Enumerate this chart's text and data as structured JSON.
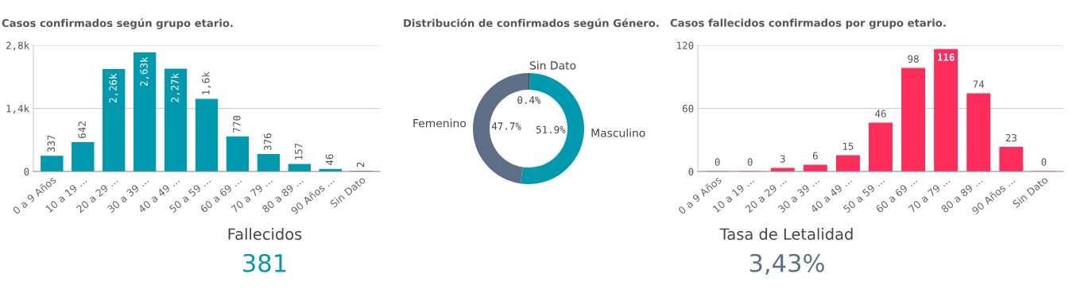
{
  "chart_data": [
    {
      "type": "bar",
      "title": "Casos confirmados según grupo etario.",
      "categories": [
        "0 a 9 Años",
        "10 a 19 ...",
        "20 a 29 ...",
        "30 a 39 ...",
        "40 a 49 ...",
        "50 a 59 ...",
        "60 a 69 ...",
        "70 a 79 ...",
        "80 a 89 ...",
        "90 Años ...",
        "Sin Dato"
      ],
      "values": [
        337,
        642,
        2260,
        2630,
        2270,
        1600,
        770,
        376,
        157,
        46,
        2
      ],
      "value_labels": [
        "337",
        "642",
        "2,26k",
        "2,63k",
        "2,27k",
        "1,6k",
        "770",
        "376",
        "157",
        "46",
        "2"
      ],
      "color": "#0099ad",
      "ylim": [
        0,
        2800
      ],
      "yticks": [
        0,
        {
          "value": 1400,
          "label": "1,4k"
        },
        {
          "value": 2800,
          "label": "2,8k"
        }
      ],
      "grid": "y"
    },
    {
      "type": "donut",
      "title": "Distribución de confirmados según Género.",
      "categories": [
        "Sin Dato",
        "Masculino",
        "Femenino"
      ],
      "values": [
        0.4,
        51.9,
        47.7
      ],
      "value_labels": [
        "0.4%",
        "51.9%",
        "47.7%"
      ],
      "colors": [
        "#404040",
        "#0099ad",
        "#5f6e87"
      ]
    },
    {
      "type": "bar",
      "title": "Casos fallecidos confirmados por grupo etario.",
      "categories": [
        "0 a 9 Años",
        "10 a 19 ...",
        "20 a 29 ...",
        "30 a 39 ...",
        "40 a 49 ...",
        "50 a 59 ...",
        "60 a 69 ...",
        "70 a 79 ...",
        "80 a 89 ...",
        "90 Años ...",
        "Sin Dato"
      ],
      "values": [
        0,
        0,
        3,
        6,
        15,
        46,
        98,
        116,
        74,
        23,
        0
      ],
      "data_labels": true,
      "color": "#ff2d5a",
      "ylim": [
        0,
        120
      ],
      "yticks": [
        0,
        60,
        120
      ],
      "grid": "y"
    },
    {
      "type": "other",
      "title": "Fallecidos",
      "annotations": [
        "381"
      ],
      "color": "#0099ad"
    },
    {
      "type": "other",
      "title": "Tasa de Letalidad",
      "annotations": [
        "3,43%"
      ],
      "color": "#5f6e87"
    }
  ]
}
